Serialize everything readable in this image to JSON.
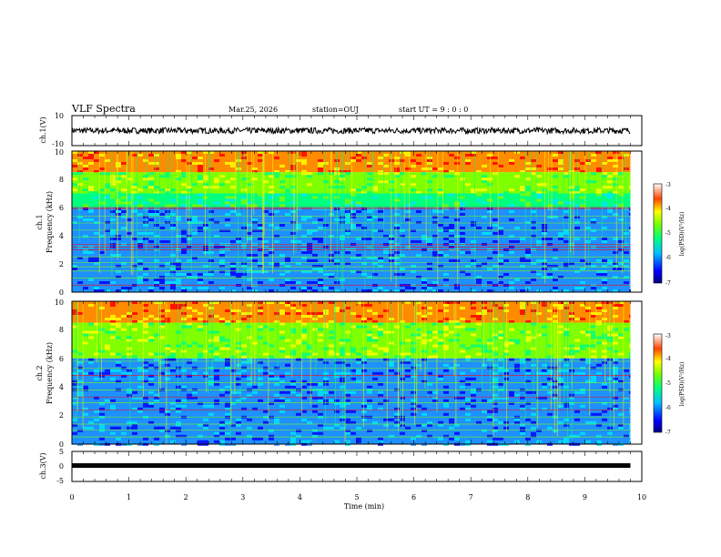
{
  "header": {
    "title": "VLF Spectra",
    "date": "Mar.25, 2026",
    "station": "station=OUJ",
    "start": "start UT =  9 : 0 : 0"
  },
  "colors": {
    "axis": "#000000",
    "background": "#ffffff",
    "colormap": [
      "#000080",
      "#0000ff",
      "#1e90ff",
      "#00e5ff",
      "#00ff7f",
      "#7fff00",
      "#ffff00",
      "#ff8c00",
      "#ff0000",
      "#a00000"
    ]
  },
  "chart_data": [
    {
      "type": "line",
      "id": "ch1-waveform",
      "ylabel": "ch.1(V)",
      "ylim": [
        -10,
        10
      ],
      "yticks": [
        "10",
        "-10"
      ],
      "description_level": 0,
      "series": [
        {
          "name": "ch.1",
          "amplitude_range": [
            -2,
            2
          ]
        }
      ]
    },
    {
      "type": "heatmap",
      "id": "ch1-spectrogram",
      "ylabel_top": "ch.1",
      "ylabel": "Frequency (kHz)",
      "ylim": [
        0,
        10
      ],
      "yticks": [
        "0",
        "2",
        "4",
        "6",
        "8",
        "10"
      ],
      "xlim": [
        0,
        10
      ],
      "active_until_min": 9.8,
      "colorbar": {
        "label": "log(PSD)(V²/Hz)",
        "range": [
          -7,
          -3
        ],
        "ticks": [
          "-3",
          "-4",
          "-5",
          "-6",
          "-7"
        ]
      },
      "bands": [
        {
          "range_khz": [
            8.5,
            10
          ],
          "level": "high"
        },
        {
          "range_khz": [
            7,
            8.5
          ],
          "level": "mid-high"
        },
        {
          "range_khz": [
            6,
            7
          ],
          "level": "mid"
        },
        {
          "range_khz": [
            0,
            6
          ],
          "level": "low"
        }
      ],
      "lines_khz": [
        0.5,
        1.0,
        1.5,
        1.8,
        2.1,
        2.5,
        3.0,
        3.2,
        3.4,
        3.9,
        4.4,
        4.9,
        5.4,
        5.9,
        6.0
      ]
    },
    {
      "type": "heatmap",
      "id": "ch2-spectrogram",
      "ylabel_top": "ch.2",
      "ylabel": "Frequency (kHz)",
      "ylim": [
        0,
        10
      ],
      "yticks": [
        "0",
        "2",
        "4",
        "6",
        "8",
        "10"
      ],
      "xlim": [
        0,
        10
      ],
      "active_until_min": 9.8,
      "colorbar": {
        "label": "log(PSD)(V²/Hz)",
        "range": [
          -7,
          -3
        ],
        "ticks": [
          "-3",
          "-4",
          "-5",
          "-6",
          "-7"
        ]
      },
      "bands": [
        {
          "range_khz": [
            8.5,
            10
          ],
          "level": "high"
        },
        {
          "range_khz": [
            6,
            8.5
          ],
          "level": "mid-high"
        },
        {
          "range_khz": [
            0,
            6
          ],
          "level": "low"
        }
      ],
      "lines_khz": [
        0.5,
        1.0,
        1.4,
        1.9,
        2.4,
        2.9,
        3.3,
        3.8,
        4.3,
        4.8,
        5.3,
        5.8
      ]
    },
    {
      "type": "line",
      "id": "ch3-waveform",
      "ylabel": "ch.3(V)",
      "ylim": [
        -5,
        5
      ],
      "yticks": [
        "5",
        "0",
        "-5"
      ],
      "xlabel": "Time (min)",
      "xlim": [
        0,
        10
      ],
      "xticks": [
        "0",
        "1",
        "2",
        "3",
        "4",
        "5",
        "6",
        "7",
        "8",
        "9",
        "10"
      ],
      "series": [
        {
          "name": "ch.3",
          "level": -1.5,
          "until_min": 9.8
        }
      ]
    }
  ]
}
